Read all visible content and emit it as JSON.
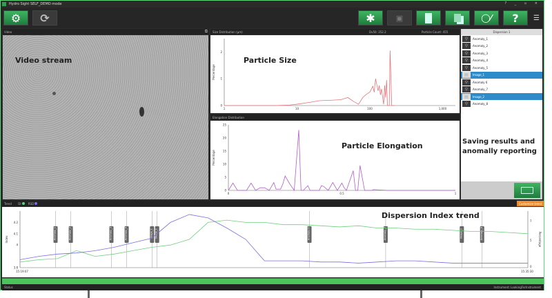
{
  "window": {
    "title": "Hydro Sight SELF_DEMO mode",
    "controls": "? _ ▫ ×"
  },
  "toolbar": {
    "left_buttons": [
      {
        "icon": "settings-gears-icon"
      },
      {
        "icon": "refresh-icon"
      }
    ],
    "right_buttons": [
      {
        "icon": "asterisk-icon",
        "label": "✱"
      },
      {
        "icon": "video-camera-icon",
        "label": "🎥"
      },
      {
        "icon": "tablet-icon"
      },
      {
        "icon": "copy-pages-icon"
      },
      {
        "icon": "dispersion-chart-icon"
      },
      {
        "icon": "help-icon",
        "label": "?"
      }
    ]
  },
  "video": {
    "header": "Video",
    "overlay": "Video stream"
  },
  "size_chart": {
    "header": "Size Distribution (µm)",
    "dv50": "Dv50: 352.2",
    "count": "Particle Count: 455",
    "overlay": "Particle Size",
    "chart_data": {
      "type": "line",
      "xscale": "log",
      "xlim": [
        1,
        1500
      ],
      "ylim": [
        0,
        2.5
      ],
      "ylabel": "Percentage",
      "xticks": [
        "1",
        "10",
        "100",
        "1,000"
      ],
      "yticks": [
        "0",
        "1",
        "2"
      ],
      "color": "#e8737a",
      "x": [
        1,
        3,
        5,
        8,
        10,
        15,
        20,
        30,
        40,
        50,
        60,
        70,
        80,
        90,
        100,
        110,
        115,
        120,
        130,
        135,
        140,
        145,
        150,
        155,
        160,
        165,
        170,
        175,
        180,
        185,
        190,
        200,
        205,
        210,
        220
      ],
      "y": [
        0,
        0,
        0,
        0.02,
        0.05,
        0.12,
        0.18,
        0.2,
        0.22,
        0.3,
        0.15,
        0.05,
        0.3,
        0.42,
        0.5,
        0.72,
        0.5,
        1.0,
        0.55,
        0.75,
        0.4,
        0.62,
        0.3,
        0.05,
        0.75,
        0.3,
        0.95,
        0,
        0,
        0,
        2.05,
        0,
        0,
        0,
        0
      ]
    }
  },
  "elong_chart": {
    "header": "Elongation Distribution",
    "overlay": "Particle Elongation",
    "chart_data": {
      "type": "line",
      "xlim": [
        0,
        1
      ],
      "ylim": [
        0,
        25
      ],
      "ylabel": "Percentage",
      "xticks": [
        "0",
        "0.5",
        "1"
      ],
      "yticks": [
        "0",
        "5",
        "10",
        "15",
        "20",
        "25"
      ],
      "color": "#b45ad2",
      "x": [
        0,
        0.02,
        0.04,
        0.06,
        0.08,
        0.1,
        0.12,
        0.14,
        0.16,
        0.18,
        0.2,
        0.21,
        0.23,
        0.24,
        0.25,
        0.26,
        0.27,
        0.29,
        0.31,
        0.32,
        0.33,
        0.35,
        0.36,
        0.4,
        0.41,
        0.42,
        0.44,
        0.46,
        0.48,
        0.5,
        0.51,
        0.52,
        0.55,
        0.56,
        0.57,
        0.58,
        0.6,
        0.63,
        0.64,
        0.7,
        1
      ],
      "y": [
        0,
        2.8,
        0,
        0,
        0,
        2.8,
        0,
        1,
        1,
        0,
        3,
        0.5,
        0.5,
        2.5,
        5.5,
        4,
        2.5,
        0,
        23,
        0,
        0,
        1.8,
        0,
        0,
        1.8,
        1.5,
        0,
        3,
        0,
        2.8,
        1,
        0,
        7.5,
        0,
        0,
        9.5,
        0,
        0,
        0.3,
        0,
        0
      ]
    }
  },
  "dispersion": {
    "header": "Dispersion 1",
    "items": [
      {
        "label": "Anomaly_1",
        "icon": "magnifier-icon",
        "selected": false
      },
      {
        "label": "Anomaly_2",
        "icon": "magnifier-icon",
        "selected": false
      },
      {
        "label": "Anomaly_3",
        "icon": "magnifier-icon",
        "selected": false
      },
      {
        "label": "Anomaly_4",
        "icon": "magnifier-icon",
        "selected": false
      },
      {
        "label": "Anomaly_5",
        "icon": "magnifier-icon",
        "selected": false
      },
      {
        "label": "Image_1",
        "icon": "image-icon",
        "selected": true
      },
      {
        "label": "Anomaly 6",
        "icon": "magnifier-icon",
        "selected": false
      },
      {
        "label": "Anomaly_7",
        "icon": "magnifier-icon",
        "selected": false
      },
      {
        "label": "Image_2",
        "icon": "image-icon",
        "selected": true
      },
      {
        "label": "Anomaly_8",
        "icon": "magnifier-icon",
        "selected": false
      }
    ],
    "overlay": "Saving results and anomally reporting"
  },
  "trend": {
    "header": "Trend",
    "legend": [
      {
        "label": "DI",
        "color": "#5fd47a"
      },
      {
        "label": "RSD",
        "color": "#7a6ee0"
      }
    ],
    "button": "Customize trend",
    "overlay": "Dispersion Index trend",
    "chart_data": {
      "type": "line",
      "yleft_label": "Index",
      "yright_label": "Percentage",
      "yleft_ticks": [
        "3.8",
        "4",
        "4.1",
        "4.2"
      ],
      "yright_ticks": [
        "0",
        "5",
        "7"
      ],
      "ylim": [
        3.8,
        4.3
      ],
      "x_start": "15:19:07",
      "x_end": "15:35:30",
      "anomalies": [
        "Anomaly_1",
        "Anomaly_2",
        "Anomaly_3",
        "Anomaly_4",
        "Image_1",
        "Image_2",
        "Anomaly 6",
        "Anomaly_7",
        "Image_3",
        "Anomaly_8"
      ],
      "anomaly_positions": [
        0.2,
        0.28,
        0.48,
        0.52,
        0.63,
        0.66,
        0.55,
        0.71,
        0.78,
        0.84
      ],
      "series": [
        {
          "name": "DI",
          "color": "#6fcf7f",
          "values": [
            3.85,
            3.87,
            3.88,
            3.95,
            3.9,
            3.92,
            3.95,
            3.98,
            4.0,
            4.05,
            4.2,
            4.22,
            4.2,
            4.2,
            4.18,
            4.18,
            4.17,
            4.16,
            4.17,
            4.15,
            4.15,
            4.14,
            4.14,
            4.13,
            4.12,
            4.12,
            4.11,
            4.1
          ]
        },
        {
          "name": "RSD",
          "color": "#7a6ee0",
          "values": [
            3.87,
            3.9,
            3.92,
            3.93,
            3.95,
            3.98,
            4.02,
            4.06,
            4.2,
            4.27,
            4.24,
            4.15,
            4.05,
            3.86,
            3.86,
            3.86,
            3.85,
            3.85,
            3.84,
            3.85,
            3.86,
            3.86,
            3.85,
            3.84,
            3.84,
            3.84,
            3.84,
            3.84
          ]
        }
      ]
    }
  },
  "status": {
    "label": "Status",
    "instrument": "Instrument: LookingForInstrument"
  }
}
